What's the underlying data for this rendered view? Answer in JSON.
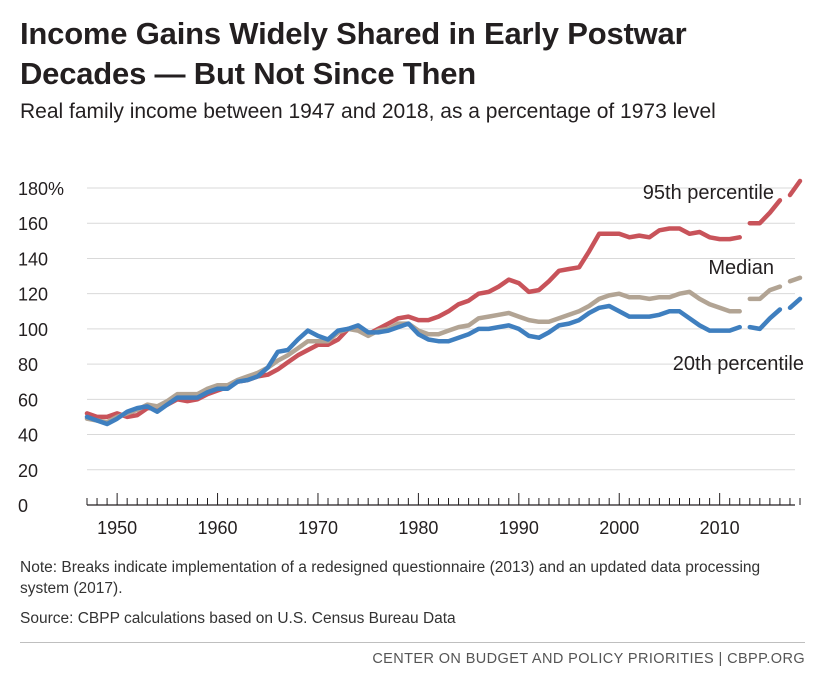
{
  "header": {
    "title": "Income Gains Widely Shared in Early Postwar Decades — But Not Since Then",
    "subtitle": "Real family income between 1947 and 2018, as a percentage of 1973 level"
  },
  "footnotes": {
    "note": "Note: Breaks indicate implementation of a redesigned questionnaire (2013) and an updated data processing system (2017).",
    "source": "Source: CBPP calculations based on U.S. Census Bureau Data",
    "footer": "CENTER ON BUDGET AND POLICY PRIORITIES | CBPP.ORG"
  },
  "chart_data": {
    "type": "line",
    "title": "Income Gains Widely Shared in Early Postwar Decades — But Not Since Then",
    "subtitle": "Real family income between 1947 and 2018, as a percentage of 1973 level",
    "xlabel": "",
    "ylabel": "",
    "xlim": [
      1947,
      2018
    ],
    "ylim": [
      0,
      180
    ],
    "yticks": [
      0,
      20,
      40,
      60,
      80,
      100,
      120,
      140,
      160,
      180
    ],
    "ytick_labels": [
      "0",
      "20",
      "40",
      "60",
      "80",
      "100",
      "120",
      "140",
      "160",
      "180%"
    ],
    "xticks": [
      1950,
      1960,
      1970,
      1980,
      1990,
      2000,
      2010
    ],
    "xtick_labels": [
      "1950",
      "1960",
      "1970",
      "1980",
      "1990",
      "2000",
      "2010"
    ],
    "grid": "horizontal",
    "breaks": [
      2013,
      2017
    ],
    "series": [
      {
        "name": "95th percentile",
        "color": "#c8535a",
        "x": [
          1947,
          1948,
          1949,
          1950,
          1951,
          1952,
          1953,
          1954,
          1955,
          1956,
          1957,
          1958,
          1959,
          1960,
          1961,
          1962,
          1963,
          1964,
          1965,
          1966,
          1967,
          1968,
          1969,
          1970,
          1971,
          1972,
          1973,
          1974,
          1975,
          1976,
          1977,
          1978,
          1979,
          1980,
          1981,
          1982,
          1983,
          1984,
          1985,
          1986,
          1987,
          1988,
          1989,
          1990,
          1991,
          1992,
          1993,
          1994,
          1995,
          1996,
          1997,
          1998,
          1999,
          2000,
          2001,
          2002,
          2003,
          2004,
          2005,
          2006,
          2007,
          2008,
          2009,
          2010,
          2011,
          2012,
          2013,
          2014,
          2015,
          2016,
          2017,
          2018
        ],
        "values": [
          52,
          50,
          50,
          52,
          50,
          51,
          55,
          55,
          57,
          60,
          59,
          60,
          63,
          65,
          67,
          70,
          71,
          73,
          74,
          77,
          81,
          85,
          88,
          91,
          91,
          94,
          100,
          100,
          97,
          100,
          103,
          106,
          107,
          105,
          105,
          107,
          110,
          114,
          116,
          120,
          121,
          124,
          128,
          126,
          121,
          122,
          127,
          133,
          134,
          135,
          144,
          154,
          154,
          154,
          152,
          153,
          152,
          156,
          157,
          157,
          154,
          155,
          152,
          151,
          151,
          152,
          160,
          160,
          166,
          173,
          176,
          184
        ]
      },
      {
        "name": "Median",
        "color": "#b2a494",
        "x": [
          1947,
          1948,
          1949,
          1950,
          1951,
          1952,
          1953,
          1954,
          1955,
          1956,
          1957,
          1958,
          1959,
          1960,
          1961,
          1962,
          1963,
          1964,
          1965,
          1966,
          1967,
          1968,
          1969,
          1970,
          1971,
          1972,
          1973,
          1974,
          1975,
          1976,
          1977,
          1978,
          1979,
          1980,
          1981,
          1982,
          1983,
          1984,
          1985,
          1986,
          1987,
          1988,
          1989,
          1990,
          1991,
          1992,
          1993,
          1994,
          1995,
          1996,
          1997,
          1998,
          1999,
          2000,
          2001,
          2002,
          2003,
          2004,
          2005,
          2006,
          2007,
          2008,
          2009,
          2010,
          2011,
          2012,
          2013,
          2014,
          2015,
          2016,
          2017,
          2018
        ],
        "values": [
          49,
          48,
          47,
          50,
          52,
          54,
          57,
          56,
          59,
          63,
          63,
          63,
          66,
          68,
          68,
          71,
          73,
          75,
          78,
          82,
          85,
          89,
          93,
          93,
          93,
          98,
          100,
          99,
          96,
          99,
          100,
          103,
          103,
          99,
          97,
          97,
          99,
          101,
          102,
          106,
          107,
          108,
          109,
          107,
          105,
          104,
          104,
          106,
          108,
          110,
          113,
          117,
          119,
          120,
          118,
          118,
          117,
          118,
          118,
          120,
          121,
          117,
          114,
          112,
          110,
          110,
          117,
          117,
          122,
          124,
          127,
          129
        ]
      },
      {
        "name": "20th percentile",
        "color": "#3f7fbf",
        "x": [
          1947,
          1948,
          1949,
          1950,
          1951,
          1952,
          1953,
          1954,
          1955,
          1956,
          1957,
          1958,
          1959,
          1960,
          1961,
          1962,
          1963,
          1964,
          1965,
          1966,
          1967,
          1968,
          1969,
          1970,
          1971,
          1972,
          1973,
          1974,
          1975,
          1976,
          1977,
          1978,
          1979,
          1980,
          1981,
          1982,
          1983,
          1984,
          1985,
          1986,
          1987,
          1988,
          1989,
          1990,
          1991,
          1992,
          1993,
          1994,
          1995,
          1996,
          1997,
          1998,
          1999,
          2000,
          2001,
          2002,
          2003,
          2004,
          2005,
          2006,
          2007,
          2008,
          2009,
          2010,
          2011,
          2012,
          2013,
          2014,
          2015,
          2016,
          2017,
          2018
        ],
        "values": [
          50,
          48,
          46,
          49,
          53,
          55,
          56,
          53,
          57,
          61,
          61,
          61,
          64,
          66,
          66,
          70,
          71,
          73,
          78,
          87,
          88,
          94,
          99,
          96,
          94,
          99,
          100,
          102,
          98,
          98,
          99,
          101,
          103,
          97,
          94,
          93,
          93,
          95,
          97,
          100,
          100,
          101,
          102,
          100,
          96,
          95,
          98,
          102,
          103,
          105,
          109,
          112,
          113,
          110,
          107,
          107,
          107,
          108,
          110,
          110,
          106,
          102,
          99,
          99,
          99,
          101,
          101,
          100,
          106,
          111,
          112,
          117
        ]
      }
    ]
  }
}
